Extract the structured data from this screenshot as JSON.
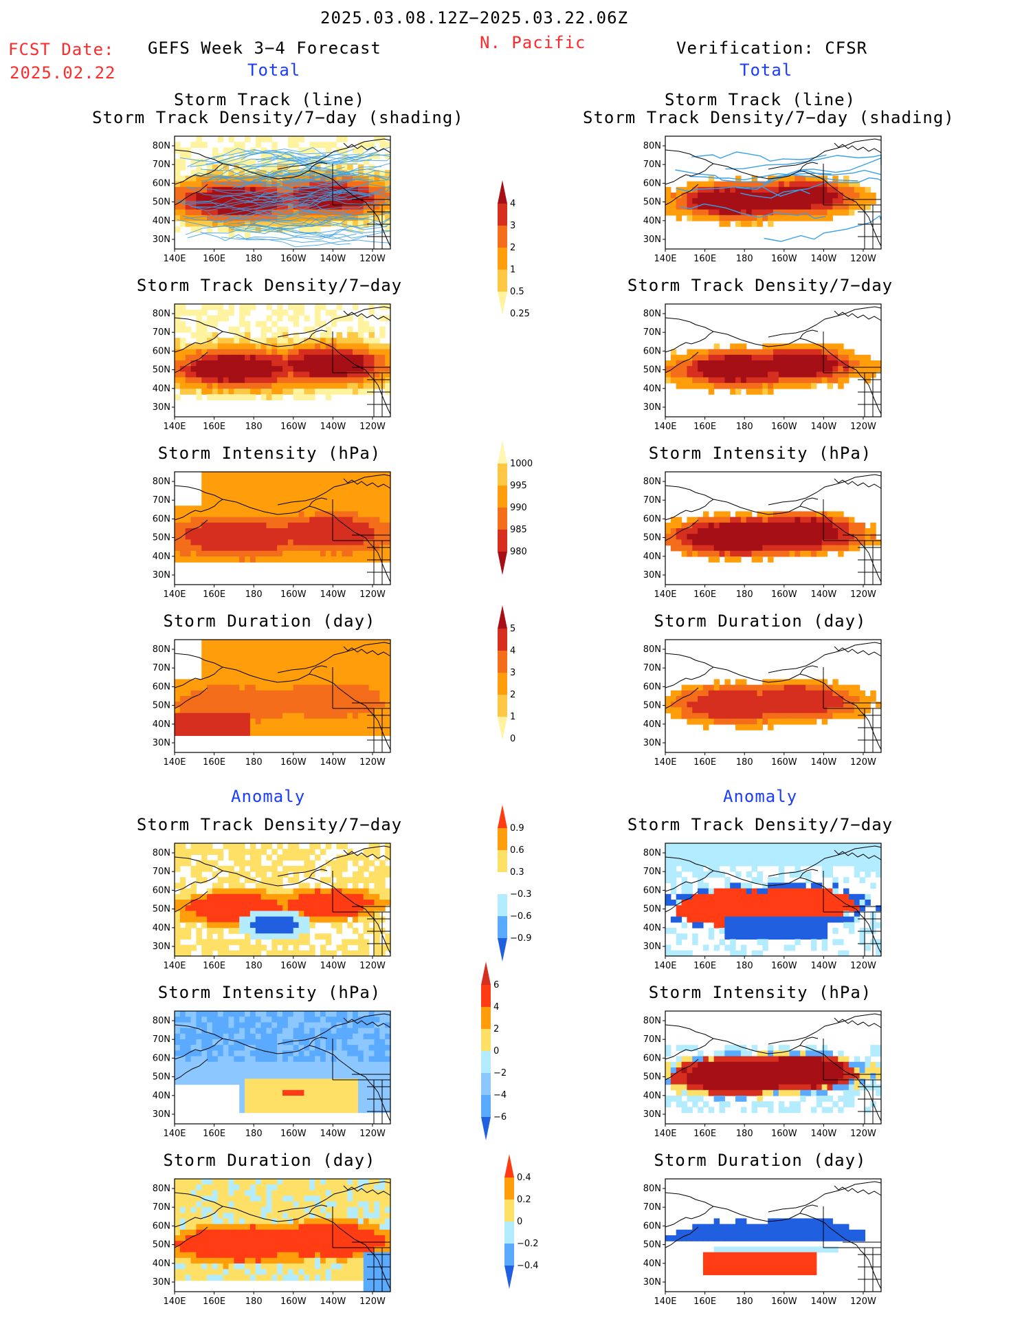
{
  "header": {
    "period": "2025.03.08.12Z−2025.03.22.06Z",
    "region": "N. Pacific",
    "fcst_label": "FCST Date:",
    "fcst_date": "2025.02.22",
    "left_title": "GEFS Week 3−4 Forecast",
    "right_title": "Verification: CFSR"
  },
  "sections": {
    "total_left": "Total",
    "total_right": "Total",
    "anom_left": "Anomaly",
    "anom_right": "Anomaly"
  },
  "panel_titles": {
    "track_line": "Storm Track (line)",
    "track_shading": "Storm Track Density/7−day (shading)",
    "density": "Storm Track Density/7−day",
    "intensity": "Storm Intensity (hPa)",
    "duration": "Storm Duration (day)"
  },
  "axes": {
    "lat_labels": [
      "80N",
      "70N",
      "60N",
      "50N",
      "40N",
      "30N"
    ],
    "lon_labels": [
      "140E",
      "160E",
      "180",
      "160W",
      "140W",
      "120W"
    ]
  },
  "colorbars": {
    "density": {
      "labels": [
        "4",
        "3",
        "2",
        "1",
        "0.5",
        "0.25"
      ],
      "colors": [
        "#a50f15",
        "#d62f1f",
        "#f46d1a",
        "#ff9d0b",
        "#ffc844",
        "#fff3a0"
      ]
    },
    "intensity": {
      "labels": [
        "1000",
        "995",
        "990",
        "985",
        "980"
      ],
      "colors": [
        "#fff6b3",
        "#ffc844",
        "#ff9d0b",
        "#f46d1a",
        "#d62f1f",
        "#a50f15"
      ]
    },
    "duration": {
      "labels": [
        "5",
        "4",
        "3",
        "2",
        "1",
        "0"
      ],
      "colors": [
        "#a50f15",
        "#d62f1f",
        "#f46d1a",
        "#ff9d0b",
        "#ffc844",
        "#fff3a0"
      ]
    },
    "anom_density": {
      "labels": [
        "0.9",
        "0.6",
        "0.3",
        "−0.3",
        "−0.6",
        "−0.9"
      ],
      "colors": [
        "#ff3c14",
        "#ff9d0b",
        "#ffe066",
        "#ffffff",
        "#b3ecff",
        "#5aaaff",
        "#1f5fe0"
      ]
    },
    "anom_intensity": {
      "labels": [
        "6",
        "4",
        "2",
        "0",
        "−2",
        "−4",
        "−6"
      ],
      "colors": [
        "#d62f1f",
        "#ff3c14",
        "#ff9d0b",
        "#ffe066",
        "#b3ecff",
        "#8cc8ff",
        "#5aaaff",
        "#1f5fe0"
      ]
    },
    "anom_duration": {
      "labels": [
        "0.4",
        "0.2",
        "0",
        "−0.2",
        "−0.4"
      ],
      "colors": [
        "#ff3c14",
        "#ff9d0b",
        "#ffe066",
        "#b3ecff",
        "#5aaaff",
        "#1f5fe0"
      ]
    }
  },
  "palette": {
    "dark_red": "#a50f15",
    "red": "#d62f1f",
    "orange_red": "#f46d1a",
    "orange": "#ff9d0b",
    "yellow": "#ffc844",
    "pale_yellow": "#fff3a0",
    "light_blue": "#b3ecff",
    "mid_blue": "#5aaaff",
    "blue": "#1f5fe0",
    "track_line": "#3aa0e8",
    "title_red": "#ff2a2a",
    "section_blue": "#1a3cff"
  }
}
